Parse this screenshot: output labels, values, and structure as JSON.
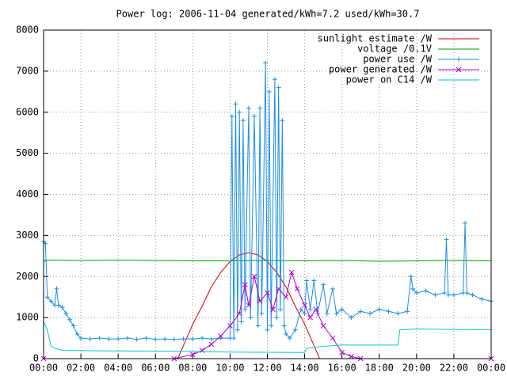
{
  "chart_data": {
    "type": "line",
    "title": "Power log: 2006-11-04 generated/kWh=7.2 used/kWh=30.7",
    "xlim": [
      0,
      24
    ],
    "xticks": [
      {
        "value": 0,
        "label": "00:00"
      },
      {
        "value": 2,
        "label": "02:00"
      },
      {
        "value": 4,
        "label": "04:00"
      },
      {
        "value": 6,
        "label": "06:00"
      },
      {
        "value": 8,
        "label": "08:00"
      },
      {
        "value": 10,
        "label": "10:00"
      },
      {
        "value": 12,
        "label": "12:00"
      },
      {
        "value": 14,
        "label": "14:00"
      },
      {
        "value": 16,
        "label": "16:00"
      },
      {
        "value": 18,
        "label": "18:00"
      },
      {
        "value": 20,
        "label": "20:00"
      },
      {
        "value": 22,
        "label": "22:00"
      },
      {
        "value": 24,
        "label": "00:00"
      }
    ],
    "ylim": [
      0,
      8000
    ],
    "yticks": [
      0,
      1000,
      2000,
      3000,
      4000,
      5000,
      6000,
      7000,
      8000
    ],
    "grid": true,
    "legend": "top-right",
    "series": [
      {
        "name": "sunlight estimate /W",
        "color": "#cc0000",
        "x": [
          0,
          7.2,
          7.5,
          8,
          8.5,
          9,
          9.5,
          10,
          10.5,
          11,
          11.5,
          12,
          12.5,
          13,
          13.5,
          14,
          14.5,
          14.8,
          24
        ],
        "values": [
          0,
          0,
          320,
          838,
          1275,
          1747,
          2100,
          2363,
          2525,
          2580,
          2525,
          2363,
          2100,
          1747,
          1275,
          838,
          320,
          0,
          0
        ]
      },
      {
        "name": "voltage /0.1V",
        "color": "#00a000",
        "x": [
          0,
          0.1,
          2,
          4,
          6,
          8,
          10,
          12,
          14,
          16,
          18,
          20,
          22,
          24
        ],
        "values": [
          2350,
          2400,
          2390,
          2400,
          2390,
          2380,
          2380,
          2390,
          2380,
          2390,
          2370,
          2380,
          2390,
          2380
        ]
      },
      {
        "name": "power use /W",
        "color": "#1e8fe8",
        "marker": "+",
        "x": [
          0,
          0.1,
          0.2,
          0.4,
          0.6,
          0.7,
          0.8,
          1,
          1.2,
          1.4,
          1.6,
          1.8,
          2,
          2.5,
          3,
          3.5,
          4,
          4.5,
          5,
          5.5,
          6,
          6.5,
          7,
          7.5,
          8,
          8.5,
          9,
          9.5,
          10,
          10.1,
          10.2,
          10.3,
          10.4,
          10.5,
          10.6,
          10.7,
          10.8,
          11,
          11.1,
          11.3,
          11.5,
          11.6,
          11.7,
          11.9,
          12,
          12.1,
          12.2,
          12.4,
          12.5,
          12.6,
          12.7,
          12.8,
          12.9,
          13,
          13.2,
          13.5,
          13.8,
          14,
          14.1,
          14.3,
          14.5,
          14.7,
          15,
          15.2,
          15.5,
          15.7,
          16,
          16.5,
          17,
          17.5,
          18,
          18.5,
          19,
          19.5,
          19.7,
          19.8,
          20,
          20.5,
          21,
          21.5,
          21.6,
          21.7,
          22,
          22.5,
          22.6,
          22.7,
          23,
          23.5,
          24
        ],
        "values": [
          2850,
          2800,
          1500,
          1400,
          1300,
          1700,
          1300,
          1250,
          1100,
          950,
          800,
          600,
          500,
          480,
          500,
          480,
          480,
          500,
          470,
          500,
          470,
          480,
          470,
          480,
          480,
          500,
          480,
          500,
          500,
          5900,
          500,
          6200,
          700,
          6000,
          900,
          5800,
          1200,
          6100,
          1000,
          5900,
          800,
          6100,
          1100,
          7200,
          700,
          6500,
          800,
          6800,
          1000,
          6600,
          1200,
          5800,
          800,
          600,
          500,
          700,
          1200,
          1100,
          1900,
          1200,
          1900,
          1100,
          1800,
          1100,
          1700,
          1100,
          1200,
          1000,
          1150,
          1100,
          1200,
          1150,
          1100,
          1150,
          2000,
          1700,
          1600,
          1650,
          1550,
          1600,
          2900,
          1550,
          1550,
          1600,
          3300,
          1600,
          1550,
          1450,
          1400
        ]
      },
      {
        "name": "power generated /W",
        "color": "#b000d0",
        "marker": "x",
        "x": [
          0,
          7,
          8,
          8.5,
          9,
          9.5,
          10,
          10.5,
          10.8,
          11,
          11.3,
          11.6,
          12,
          12.3,
          12.6,
          13,
          13.3,
          13.6,
          14,
          14.3,
          14.6,
          15,
          15.5,
          16,
          16.5,
          17,
          24
        ],
        "values": [
          0,
          0,
          100,
          200,
          350,
          550,
          800,
          1100,
          1800,
          1300,
          2000,
          1400,
          1600,
          1200,
          1700,
          1500,
          2100,
          1700,
          1300,
          1000,
          1200,
          800,
          500,
          150,
          50,
          0,
          0
        ]
      },
      {
        "name": "power on C14 /W",
        "color": "#00c8c8",
        "x": [
          0,
          0.2,
          0.4,
          0.6,
          1,
          3,
          7,
          10,
          14,
          14.1,
          15,
          16,
          19,
          19.1,
          20,
          24
        ],
        "values": [
          900,
          700,
          300,
          250,
          200,
          190,
          180,
          160,
          150,
          250,
          300,
          330,
          330,
          700,
          720,
          700
        ]
      }
    ]
  }
}
